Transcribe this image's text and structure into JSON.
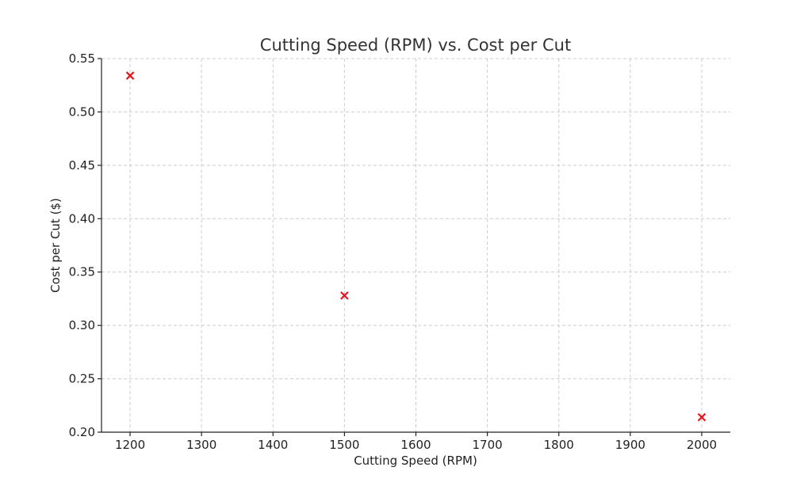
{
  "chart_data": {
    "type": "scatter",
    "title": "Cutting Speed (RPM) vs. Cost per Cut",
    "xlabel": "Cutting Speed (RPM)",
    "ylabel": "Cost per Cut ($)",
    "xlim": [
      1160,
      2040
    ],
    "ylim": [
      0.2,
      0.55
    ],
    "xticks": [
      1200,
      1300,
      1400,
      1500,
      1600,
      1700,
      1800,
      1900,
      2000
    ],
    "yticks": [
      0.2,
      0.25,
      0.3,
      0.35,
      0.4,
      0.45,
      0.5,
      0.55
    ],
    "grid": true,
    "marker": "x",
    "marker_color": "#e8141c",
    "points": [
      {
        "x": 1200,
        "y": 0.534
      },
      {
        "x": 1500,
        "y": 0.328
      },
      {
        "x": 2000,
        "y": 0.214
      }
    ]
  }
}
